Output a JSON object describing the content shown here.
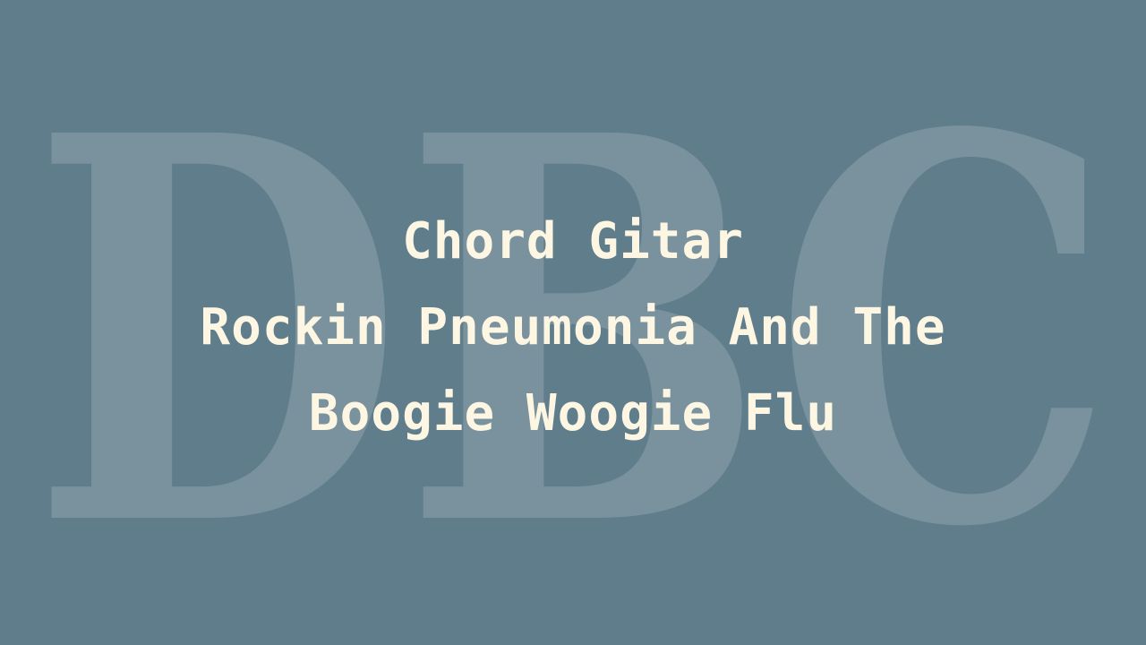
{
  "watermark": {
    "text": "DBC",
    "color": "#7a919e"
  },
  "title": {
    "lines": [
      "Chord Gitar",
      "Rockin Pneumonia And The",
      "Boogie Woogie Flu"
    ],
    "color": "#fdf6e3"
  },
  "background_color": "#607d8b"
}
